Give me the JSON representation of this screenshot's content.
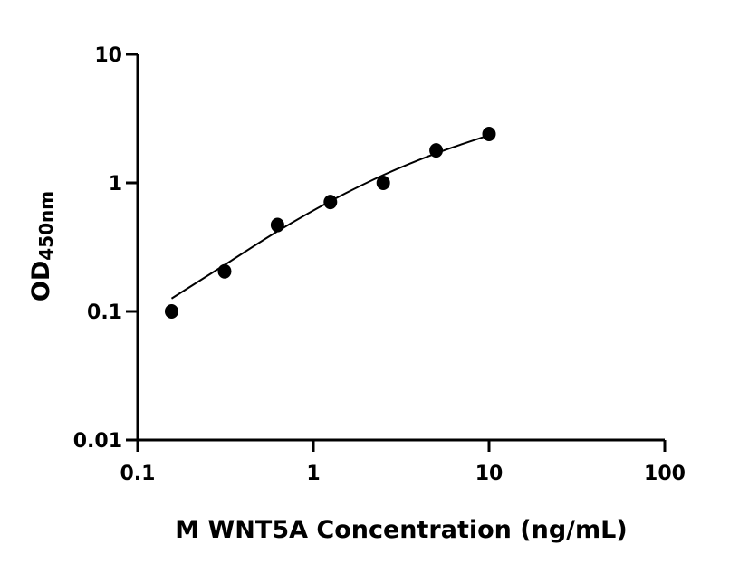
{
  "chart_data": {
    "type": "scatter",
    "title": "",
    "xlabel": "M WNT5A Concentration (ng/mL)",
    "ylabel_main": "OD",
    "ylabel_sub": "450nm",
    "x_scale": "log",
    "y_scale": "log",
    "xlim": [
      0.1,
      100
    ],
    "ylim": [
      0.01,
      10
    ],
    "x_ticks": [
      0.1,
      1,
      10,
      100
    ],
    "x_tick_labels": [
      "0.1",
      "1",
      "10",
      "100"
    ],
    "y_ticks": [
      0.01,
      0.1,
      1,
      10
    ],
    "y_tick_labels": [
      "0.01",
      "0.1",
      "1",
      "10"
    ],
    "grid": false,
    "legend": "none",
    "color": "#000000",
    "points": {
      "x": [
        0.156,
        0.3125,
        0.625,
        1.25,
        2.5,
        5,
        10
      ],
      "y": [
        0.1,
        0.205,
        0.47,
        0.71,
        1.0,
        1.79,
        2.4
      ]
    },
    "fit_curve": {
      "x": [
        0.156,
        0.3125,
        0.625,
        1.25,
        2.5,
        5,
        10
      ],
      "y": [
        0.126,
        0.23,
        0.42,
        0.72,
        1.15,
        1.7,
        2.35
      ]
    }
  }
}
